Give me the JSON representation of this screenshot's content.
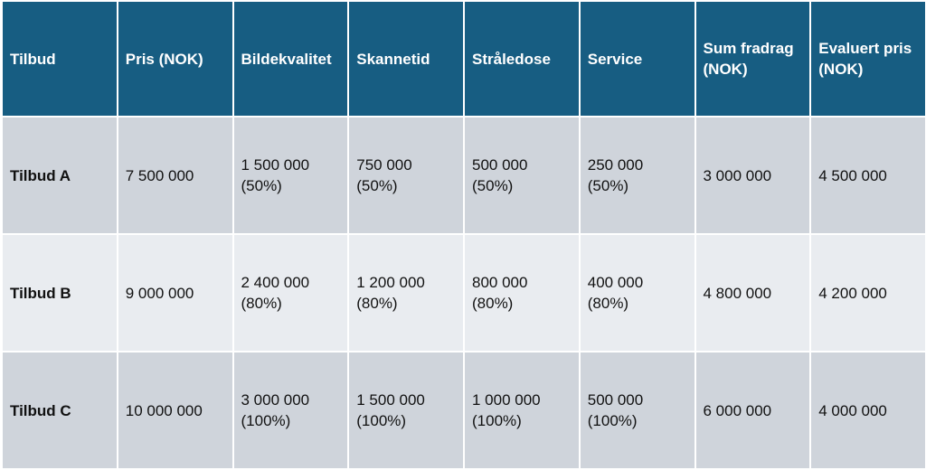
{
  "table": {
    "headers": [
      {
        "lines": [
          "Tilbud"
        ]
      },
      {
        "lines": [
          "Pris (NOK)"
        ]
      },
      {
        "lines": [
          "Bildekvalitet"
        ]
      },
      {
        "lines": [
          "Skannetid"
        ]
      },
      {
        "lines": [
          "Stråledose"
        ]
      },
      {
        "lines": [
          "Service"
        ]
      },
      {
        "lines": [
          "Sum fradrag",
          "(NOK)"
        ]
      },
      {
        "lines": [
          "Evaluert pris",
          "(NOK)"
        ]
      }
    ],
    "rows": [
      {
        "name": "Tilbud A",
        "pris": "7 500 000",
        "bildekvalitet": {
          "value": "1 500 000",
          "pct": "(50%)"
        },
        "skannetid": {
          "value": "750 000",
          "pct": "(50%)"
        },
        "straledose": {
          "value": "500 000",
          "pct": "(50%)"
        },
        "service": {
          "value": "250 000",
          "pct": "(50%)"
        },
        "sum_fradrag": "3 000 000",
        "evaluert_pris": "4 500 000"
      },
      {
        "name": "Tilbud B",
        "pris": "9 000 000",
        "bildekvalitet": {
          "value": "2 400 000",
          "pct": "(80%)"
        },
        "skannetid": {
          "value": "1 200 000",
          "pct": "(80%)"
        },
        "straledose": {
          "value": "800 000",
          "pct": "(80%)"
        },
        "service": {
          "value": "400 000",
          "pct": "(80%)"
        },
        "sum_fradrag": "4 800 000",
        "evaluert_pris": "4 200 000"
      },
      {
        "name": "Tilbud C",
        "pris": "10 000 000",
        "bildekvalitet": {
          "value": "3 000 000",
          "pct": "(100%)"
        },
        "skannetid": {
          "value": "1 500 000",
          "pct": "(100%)"
        },
        "straledose": {
          "value": "1 000 000",
          "pct": "(100%)"
        },
        "service": {
          "value": "500 000",
          "pct": "(100%)"
        },
        "sum_fradrag": "6 000 000",
        "evaluert_pris": "4 000 000"
      }
    ]
  },
  "colors": {
    "header_bg": "#175d82",
    "header_text": "#ffffff",
    "row_dark": "#cfd4db",
    "row_light": "#e9ecf0",
    "border": "#ffffff"
  }
}
